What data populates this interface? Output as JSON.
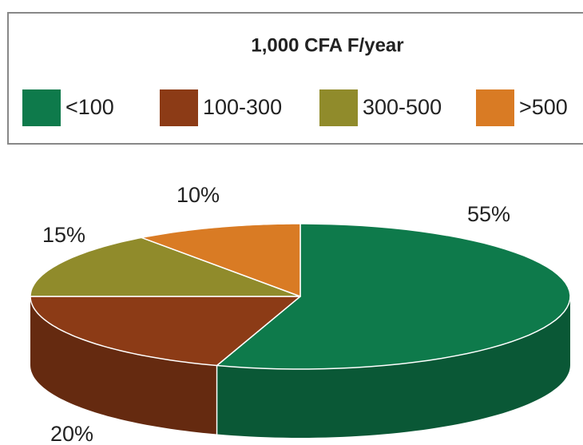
{
  "chart_data": {
    "type": "pie",
    "title": "1,000 CFA F/year",
    "categories": [
      "<100",
      "100-300",
      "300-500",
      ">500"
    ],
    "values": [
      55,
      20,
      15,
      10
    ],
    "value_labels": [
      "55%",
      "20%",
      "15%",
      "10%"
    ],
    "colors": [
      "#0e7a4b",
      "#8c3b16",
      "#908b2b",
      "#d97b24"
    ]
  }
}
